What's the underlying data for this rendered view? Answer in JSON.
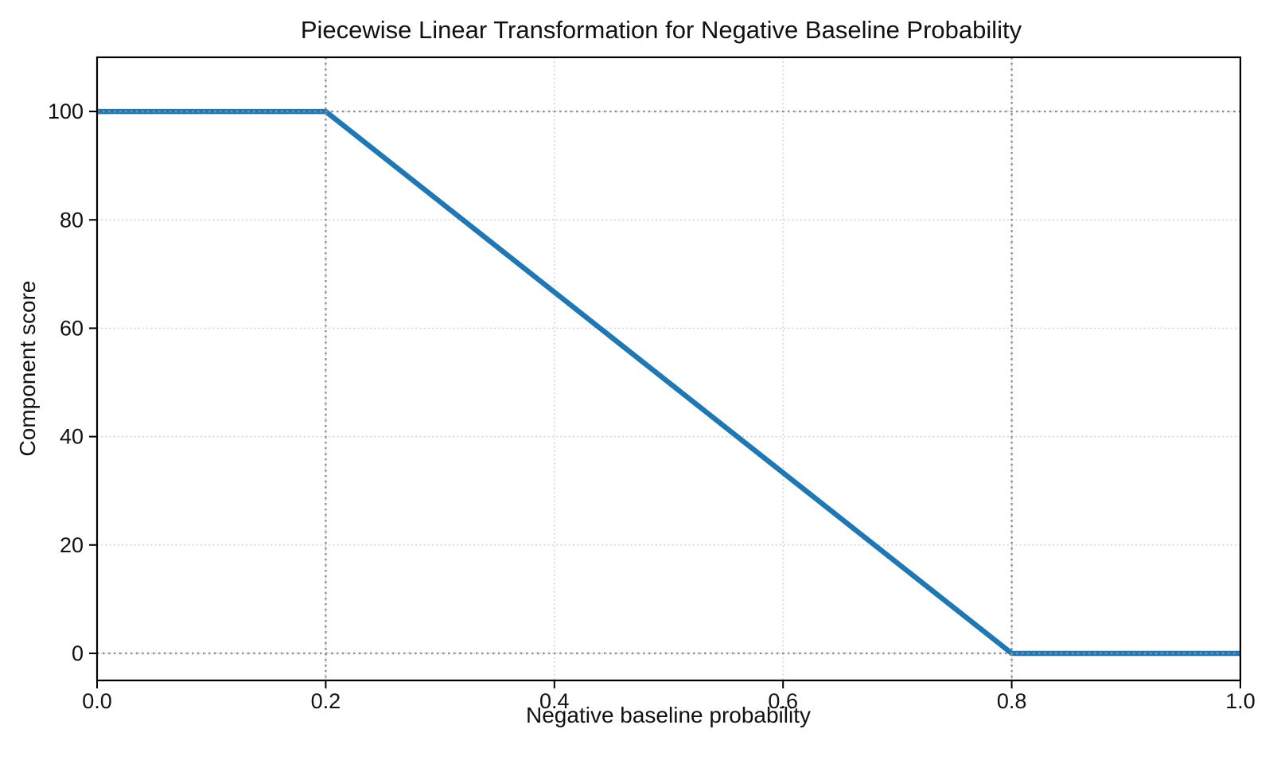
{
  "chart_data": {
    "type": "line",
    "title": "Piecewise Linear Transformation for Negative Baseline Probability",
    "xlabel": "Negative baseline probability",
    "ylabel": "Component score",
    "xlim": [
      0.0,
      1.0
    ],
    "ylim": [
      -5,
      110
    ],
    "xticks": [
      0.0,
      0.2,
      0.4,
      0.6,
      0.8,
      1.0
    ],
    "xtick_labels": [
      "0.0",
      "0.2",
      "0.4",
      "0.6",
      "0.8",
      "1.0"
    ],
    "yticks": [
      0,
      20,
      40,
      60,
      80,
      100
    ],
    "ytick_labels": [
      "0",
      "20",
      "40",
      "60",
      "80",
      "100"
    ],
    "grid": "on",
    "legend": "none",
    "series": [
      {
        "name": "component-score",
        "color": "#1f77b4",
        "points": [
          [
            0.0,
            100
          ],
          [
            0.2,
            100
          ],
          [
            0.8,
            0
          ],
          [
            1.0,
            0
          ]
        ]
      }
    ],
    "reference_lines": {
      "vertical_x": [
        0.2,
        0.8
      ],
      "horizontal_y": [
        0,
        100
      ],
      "style": "dotted",
      "color": "#8f8f8f"
    },
    "colors": {
      "grid": "#cccccc",
      "spine": "#000000",
      "text": "#111111",
      "background": "#ffffff"
    }
  }
}
